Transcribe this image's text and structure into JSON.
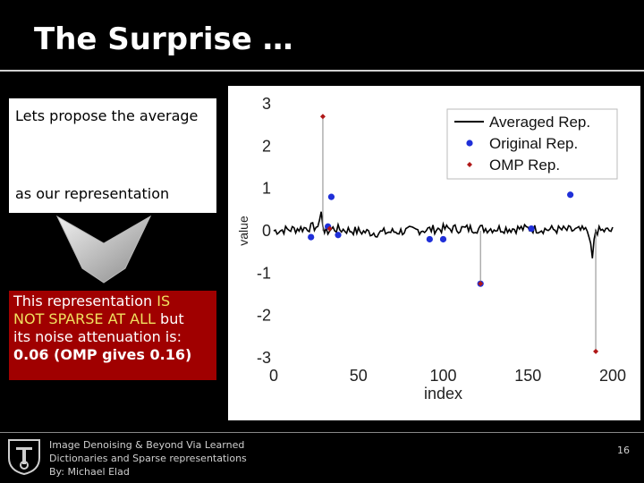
{
  "slide": {
    "title": "The Surprise …",
    "box_line1": "Lets propose the average",
    "box_line2": "as our representation",
    "desc_line1_a": "This representation ",
    "desc_line1_b": "IS",
    "desc_line2_a": "NOT SPARSE AT ALL",
    "desc_line2_b": " but",
    "desc_line3": "its noise attenuation is:",
    "desc_line4": "0.06 (OMP gives 0.16)",
    "footer_line1": "Image Denoising & Beyond Via Learned",
    "footer_line2": "Dictionaries and Sparse representations",
    "footer_line3": "By: Michael Elad",
    "page_number": "16"
  },
  "chart_data": {
    "type": "line",
    "xlabel": "index",
    "ylabel": "value",
    "xlim": [
      0,
      200
    ],
    "ylim": [
      -3,
      3
    ],
    "xticks": [
      "0",
      "50",
      "100",
      "150",
      "200"
    ],
    "yticks": [
      "3",
      "2",
      "1",
      "0",
      "-1",
      "-2",
      "-3"
    ],
    "legend": {
      "placement": "top-right",
      "entries": [
        "Averaged Rep.",
        "Original Rep.",
        "OMP Rep."
      ]
    },
    "series": [
      {
        "name": "Averaged Rep.",
        "style": "line",
        "color": "#000000",
        "points": [
          [
            0,
            0
          ],
          [
            15,
            0.05
          ],
          [
            26,
            0.1
          ],
          [
            27,
            0.25
          ],
          [
            28,
            0.45
          ],
          [
            29,
            0.1
          ],
          [
            30,
            -0.05
          ],
          [
            35,
            0.05
          ],
          [
            60,
            -0.05
          ],
          [
            100,
            0.05
          ],
          [
            150,
            0.05
          ],
          [
            185,
            0.0
          ],
          [
            187,
            -0.3
          ],
          [
            188,
            -0.65
          ],
          [
            189,
            -0.2
          ],
          [
            190,
            0.0
          ],
          [
            200,
            0.0
          ]
        ]
      },
      {
        "name": "Original Rep.",
        "style": "marker",
        "marker": "dot",
        "color": "#1f2fd8",
        "points": [
          [
            22,
            -0.15
          ],
          [
            32,
            0.1
          ],
          [
            34,
            0.8
          ],
          [
            38,
            -0.1
          ],
          [
            92,
            -0.2
          ],
          [
            100,
            -0.2
          ],
          [
            122,
            -1.25
          ],
          [
            152,
            0.05
          ],
          [
            175,
            0.85
          ]
        ]
      },
      {
        "name": "OMP Rep.",
        "style": "stem",
        "marker": "diamond",
        "color": "#b01818",
        "points": [
          [
            29,
            2.7
          ],
          [
            33,
            0.05
          ],
          [
            122,
            -1.25
          ],
          [
            190,
            -2.85
          ]
        ]
      }
    ]
  }
}
